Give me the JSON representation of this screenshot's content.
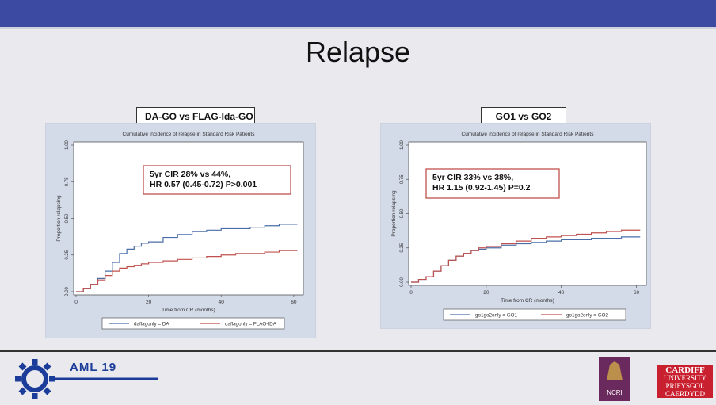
{
  "slide": {
    "title": "Relapse"
  },
  "footer": {
    "aml": "AML 19",
    "ncri": "NCRI",
    "cardiff": [
      "CARDIFF",
      "UNIVERSITY",
      "PRIFYSGOL",
      "CAERDYDD"
    ]
  },
  "colors": {
    "topbar": "#3c4aa2",
    "series_a": "#4a6fa8",
    "series_b": "#c0504d"
  },
  "chart_data": [
    {
      "type": "line",
      "heading": "DA-GO vs FLAG-Ida-GO",
      "title": "Cumulative incidence of relapse in Standard Risk Patients",
      "xlabel": "Time from CR (months)",
      "ylabel": "Proportion relapsing",
      "xlim": [
        0,
        62
      ],
      "ylim": [
        0,
        1
      ],
      "xticks": [
        0,
        20,
        40,
        60
      ],
      "yticks": [
        "0.00",
        "0.25",
        "0.50",
        "0.75",
        "1.00"
      ],
      "annotation": [
        "5yr CIR  28% vs 44%,",
        "HR 0.57 (0.45-0.72) P>0.001"
      ],
      "series": [
        {
          "name": "daflagonly = DA",
          "color": "#4a6fa8",
          "x": [
            0,
            2,
            4,
            6,
            8,
            10,
            12,
            14,
            16,
            18,
            20,
            24,
            28,
            32,
            36,
            40,
            44,
            48,
            52,
            56,
            60,
            61
          ],
          "y": [
            0,
            0.02,
            0.05,
            0.09,
            0.14,
            0.2,
            0.26,
            0.29,
            0.31,
            0.33,
            0.34,
            0.37,
            0.39,
            0.41,
            0.42,
            0.43,
            0.43,
            0.44,
            0.45,
            0.46,
            0.46,
            0.46
          ]
        },
        {
          "name": "daflagonly = FLAG-IDA",
          "color": "#c0504d",
          "x": [
            0,
            2,
            4,
            6,
            8,
            10,
            12,
            14,
            16,
            18,
            20,
            24,
            28,
            32,
            36,
            40,
            44,
            48,
            52,
            56,
            60,
            61
          ],
          "y": [
            0,
            0.02,
            0.05,
            0.08,
            0.11,
            0.14,
            0.16,
            0.17,
            0.18,
            0.19,
            0.2,
            0.21,
            0.22,
            0.23,
            0.24,
            0.25,
            0.26,
            0.26,
            0.27,
            0.28,
            0.28,
            0.28
          ]
        }
      ]
    },
    {
      "type": "line",
      "heading": "GO1 vs GO2",
      "title": "Cumulative incidence of relapse in Standard Risk Patients",
      "xlabel": "Time from CR (months)",
      "ylabel": "Proportion relapsing",
      "xlim": [
        0,
        62
      ],
      "ylim": [
        0,
        1
      ],
      "xticks": [
        0,
        20,
        40,
        60
      ],
      "yticks": [
        "0.00",
        "0.25",
        "0.50",
        "0.75",
        "1.00"
      ],
      "annotation": [
        "5yr CIR 33% vs 38%,",
        "HR 1.15 (0.92-1.45) P=0.2"
      ],
      "series": [
        {
          "name": "go1go2only = GO1",
          "color": "#4a6fa8",
          "x": [
            0,
            2,
            4,
            6,
            8,
            10,
            12,
            14,
            16,
            18,
            20,
            24,
            28,
            32,
            36,
            40,
            44,
            48,
            52,
            56,
            60,
            61
          ],
          "y": [
            0,
            0.02,
            0.04,
            0.08,
            0.12,
            0.16,
            0.19,
            0.21,
            0.23,
            0.24,
            0.25,
            0.27,
            0.28,
            0.29,
            0.3,
            0.31,
            0.31,
            0.32,
            0.32,
            0.33,
            0.33,
            0.33
          ]
        },
        {
          "name": "go1go2only = GO2",
          "color": "#c0504d",
          "x": [
            0,
            2,
            4,
            6,
            8,
            10,
            12,
            14,
            16,
            18,
            20,
            24,
            28,
            32,
            36,
            40,
            44,
            48,
            52,
            56,
            60,
            61
          ],
          "y": [
            0,
            0.02,
            0.04,
            0.08,
            0.12,
            0.16,
            0.19,
            0.21,
            0.23,
            0.25,
            0.26,
            0.28,
            0.3,
            0.32,
            0.33,
            0.34,
            0.35,
            0.36,
            0.37,
            0.38,
            0.38,
            0.38
          ]
        }
      ]
    }
  ]
}
